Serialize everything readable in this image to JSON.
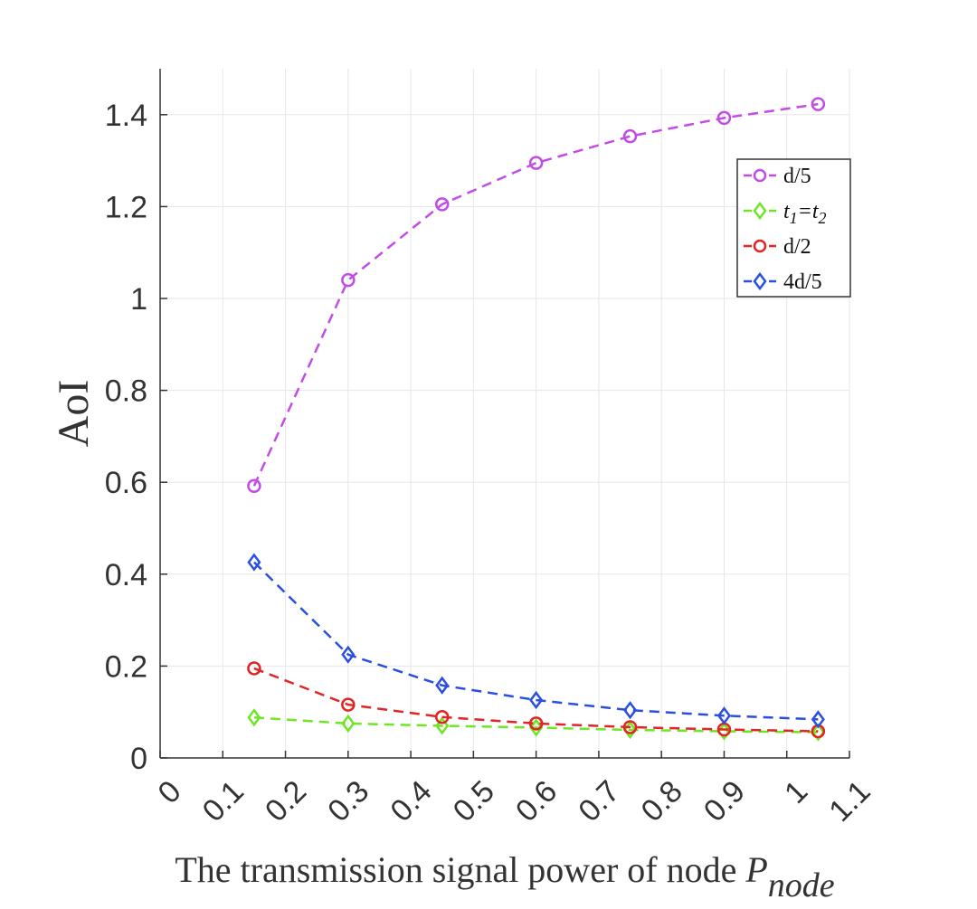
{
  "chart_data": {
    "type": "line",
    "title": "",
    "xlabel": {
      "main": "The transmission signal power of node ",
      "symbol": "P",
      "subscript": "node"
    },
    "ylabel": "AoI",
    "xlim": [
      0,
      1.1
    ],
    "ylim": [
      0,
      1.5
    ],
    "x_ticks": [
      0,
      0.1,
      0.2,
      0.3,
      0.4,
      0.5,
      0.6,
      0.7,
      0.8,
      0.9,
      1,
      1.1
    ],
    "x_tick_labels": [
      "0",
      "0.1",
      "0.2",
      "0.3",
      "0.4",
      "0.5",
      "0.6",
      "0.7",
      "0.8",
      "0.9",
      "1",
      "1.1"
    ],
    "y_ticks": [
      0,
      0.2,
      0.4,
      0.6,
      0.8,
      1,
      1.2,
      1.4
    ],
    "y_tick_labels": [
      "0",
      "0.2",
      "0.4",
      "0.6",
      "0.8",
      "1",
      "1.2",
      "1.4"
    ],
    "grid": true,
    "legend_position": "top-right",
    "x": [
      0.15,
      0.3,
      0.45,
      0.6,
      0.75,
      0.9,
      1.05
    ],
    "series": [
      {
        "name": "d/5",
        "color": "#c34ce6",
        "marker": "circle",
        "values": [
          0.592,
          1.04,
          1.205,
          1.295,
          1.353,
          1.393,
          1.423
        ]
      },
      {
        "name": "t1=t2",
        "legend_parts": [
          "t",
          "1",
          "=t",
          "2"
        ],
        "color": "#6ee626",
        "marker": "diamond",
        "values": [
          0.088,
          0.075,
          0.07,
          0.066,
          0.061,
          0.058,
          0.056
        ]
      },
      {
        "name": "d/2",
        "color": "#e32424",
        "marker": "circle",
        "values": [
          0.195,
          0.116,
          0.089,
          0.075,
          0.067,
          0.062,
          0.058
        ]
      },
      {
        "name": "4d/5",
        "color": "#2a4fe0",
        "marker": "diamond",
        "values": [
          0.426,
          0.225,
          0.158,
          0.126,
          0.104,
          0.092,
          0.084
        ]
      }
    ]
  }
}
